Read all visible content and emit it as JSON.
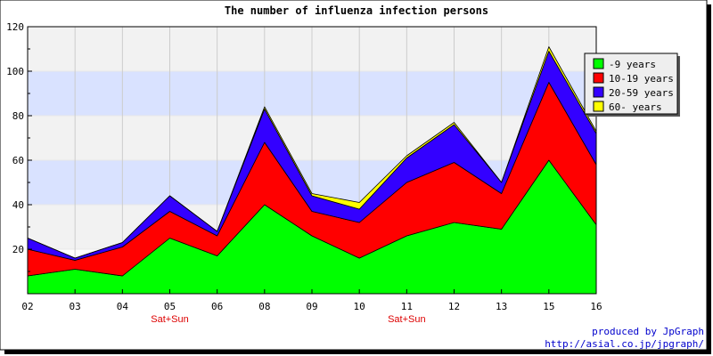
{
  "chart_data": {
    "type": "area",
    "stacked": true,
    "title": "The number of influenza infection persons",
    "xlabel": "",
    "ylabel": "",
    "categories": [
      "02",
      "03",
      "04",
      "05",
      "06",
      "08",
      "09",
      "10",
      "11",
      "12",
      "13",
      "15",
      "16"
    ],
    "category_notes": [
      "",
      "",
      "",
      "Sat+Sun",
      "",
      "",
      "",
      "",
      "Sat+Sun",
      "",
      "",
      "",
      ""
    ],
    "ylim": [
      0,
      120
    ],
    "yticks": [
      20,
      40,
      60,
      80,
      100,
      120
    ],
    "grid": true,
    "legend_position": "top-right",
    "series": [
      {
        "name": "-9 years",
        "color": "#00ff00",
        "values": [
          8,
          11,
          8,
          25,
          17,
          40,
          26,
          16,
          26,
          32,
          29,
          60,
          31
        ]
      },
      {
        "name": "10-19 years",
        "color": "#ff0000",
        "values": [
          12,
          4,
          13,
          12,
          9,
          28,
          11,
          16,
          24,
          27,
          16,
          35,
          27
        ]
      },
      {
        "name": "20-59 years",
        "color": "#3300ff",
        "values": [
          5,
          1,
          2,
          7,
          2,
          15,
          7,
          6,
          11,
          17,
          5,
          14,
          14
        ]
      },
      {
        "name": "60- years",
        "color": "#ffff00",
        "values": [
          0,
          0,
          0,
          0,
          0,
          1,
          1,
          3,
          1,
          1,
          0,
          2,
          1
        ]
      }
    ],
    "band_colors": [
      "#ffffff",
      "#f2f2f2",
      "#d9e2ff"
    ],
    "note_color": "#dd0000"
  },
  "footer": {
    "credit": "produced by JpGraph",
    "url": "http://asial.co.jp/jpgraph/",
    "color": "#0000cc"
  }
}
